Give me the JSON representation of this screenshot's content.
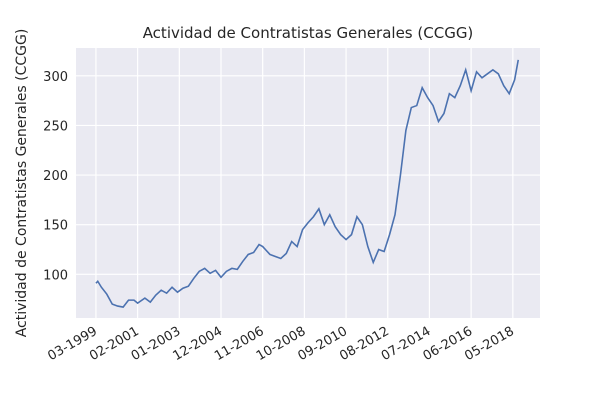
{
  "chart_data": {
    "type": "line",
    "title": "Actividad de Contratistas Generales (CCGG)",
    "y_label": "Actividad de Contratistas Generales (CCGG)",
    "x": [
      "03-1999",
      "04-1999",
      "06-1999",
      "09-1999",
      "12-1999",
      "03-2000",
      "06-2000",
      "09-2000",
      "12-2000",
      "02-2001",
      "06-2001",
      "09-2001",
      "12-2001",
      "03-2002",
      "06-2002",
      "09-2002",
      "12-2002",
      "03-2003",
      "06-2003",
      "09-2003",
      "12-2003",
      "03-2004",
      "06-2004",
      "09-2004",
      "12-2004",
      "03-2005",
      "06-2005",
      "09-2005",
      "12-2005",
      "03-2006",
      "06-2006",
      "09-2006",
      "11-2006",
      "01-2007",
      "03-2007",
      "06-2007",
      "09-2007",
      "12-2007",
      "03-2008",
      "06-2008",
      "09-2008",
      "12-2008",
      "03-2009",
      "06-2009",
      "09-2009",
      "12-2009",
      "03-2010",
      "06-2010",
      "09-2010",
      "12-2010",
      "03-2011",
      "06-2011",
      "09-2011",
      "12-2011",
      "03-2012",
      "06-2012",
      "09-2012",
      "12-2012",
      "03-2013",
      "06-2013",
      "09-2013",
      "12-2013",
      "03-2014",
      "06-2014",
      "09-2014",
      "12-2014",
      "03-2015",
      "06-2015",
      "09-2015",
      "12-2015",
      "03-2016",
      "06-2016",
      "09-2016",
      "12-2016",
      "03-2017",
      "06-2017",
      "09-2017",
      "12-2017",
      "03-2018",
      "06-2018",
      "08-2018"
    ],
    "values": [
      91,
      93,
      87,
      80,
      70,
      68,
      67,
      74,
      74,
      71,
      76,
      72,
      79,
      84,
      81,
      87,
      82,
      86,
      88,
      96,
      103,
      106,
      101,
      104,
      97,
      103,
      106,
      105,
      113,
      120,
      122,
      130,
      128,
      124,
      120,
      118,
      116,
      121,
      133,
      128,
      145,
      152,
      158,
      166,
      150,
      160,
      148,
      140,
      135,
      140,
      158,
      150,
      128,
      112,
      125,
      123,
      140,
      160,
      200,
      245,
      268,
      270,
      288,
      278,
      270,
      254,
      262,
      282,
      278,
      290,
      306,
      285,
      304,
      298,
      302,
      306,
      302,
      290,
      282,
      296,
      316
    ],
    "color": "#4c72b0",
    "xlim": [
      "04-1998",
      "08-2019"
    ],
    "xticks": [
      "03-1999",
      "02-2001",
      "01-2003",
      "12-2004",
      "11-2006",
      "10-2008",
      "09-2010",
      "08-2012",
      "07-2014",
      "06-2016",
      "05-2018"
    ],
    "ylim": [
      56,
      328
    ],
    "yticks": [
      100,
      150,
      200,
      250,
      300
    ],
    "grid": true
  }
}
